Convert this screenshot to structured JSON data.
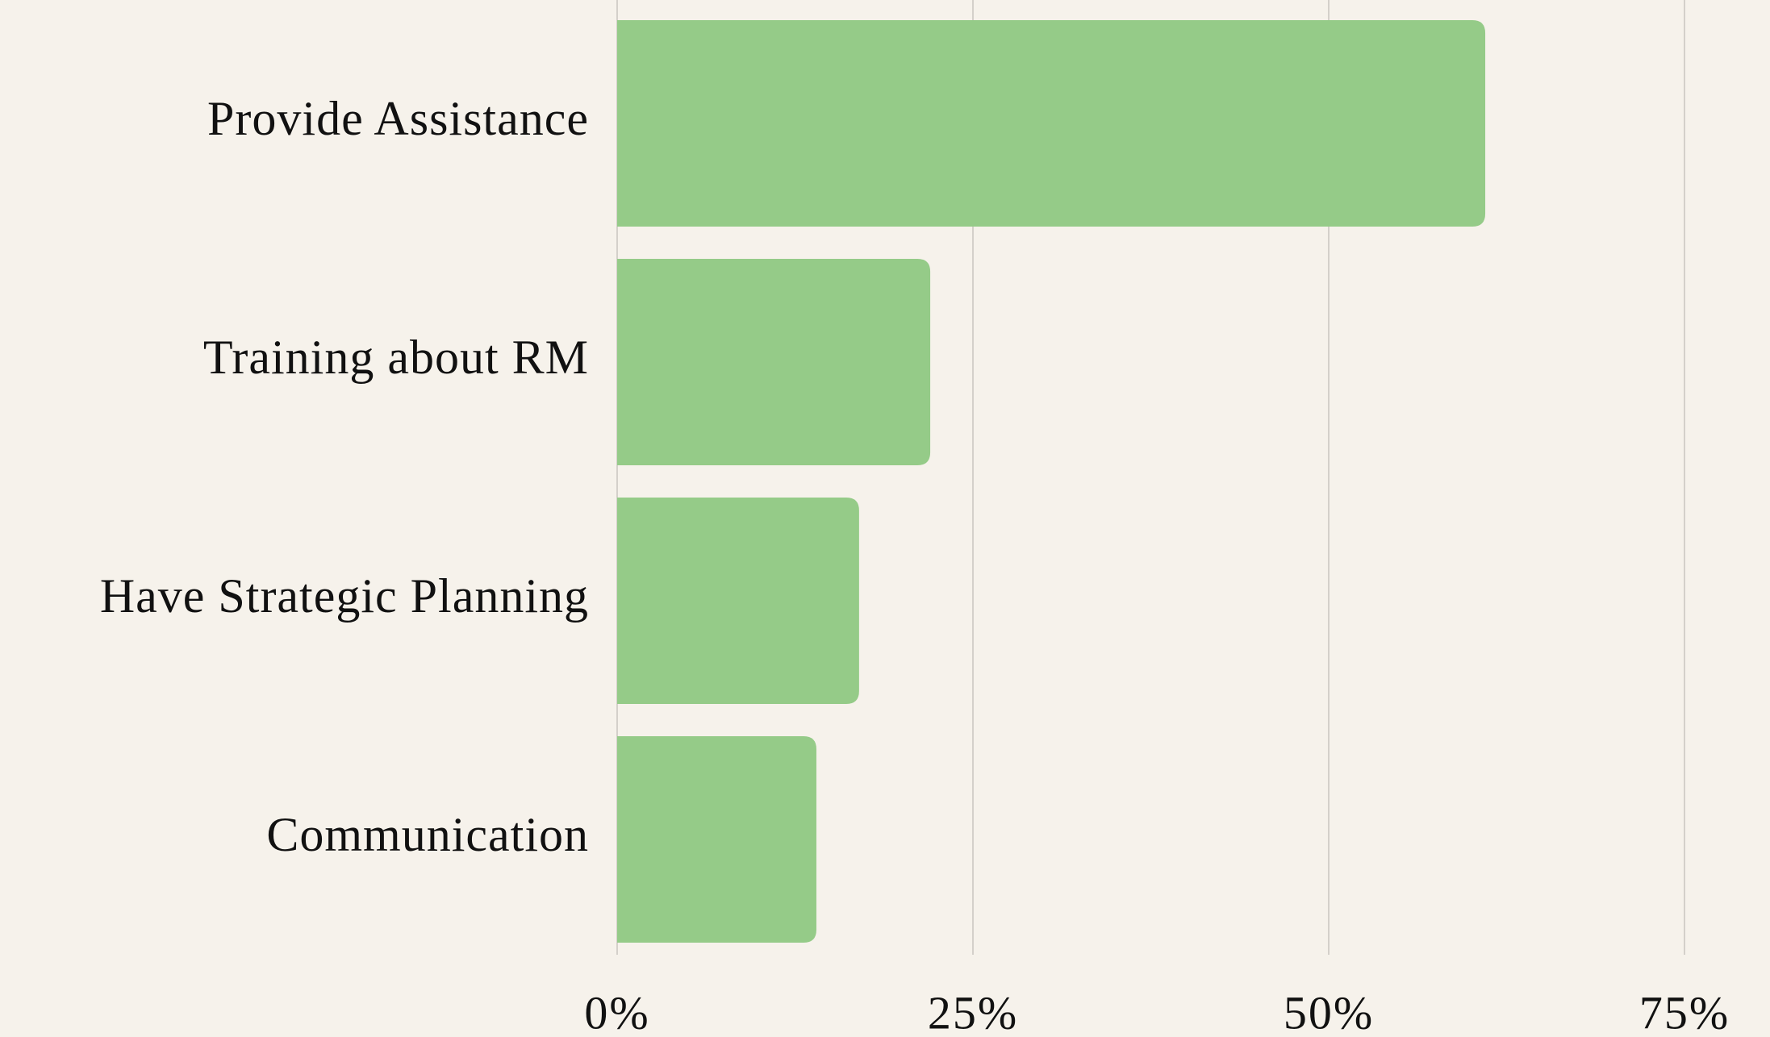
{
  "chart_data": {
    "type": "barh",
    "categories": [
      "Provide Assistance",
      "Training about RM",
      "Have Strategic Planning",
      "Communication"
    ],
    "values": [
      61,
      22,
      17,
      14
    ],
    "color": "#95cb88",
    "xlim": [
      0,
      75
    ],
    "xticks": [
      {
        "value": 0,
        "label": "0%"
      },
      {
        "value": 25,
        "label": "25%"
      },
      {
        "value": 50,
        "label": "50%"
      },
      {
        "value": 75,
        "label": "75%"
      }
    ],
    "grid": true
  }
}
